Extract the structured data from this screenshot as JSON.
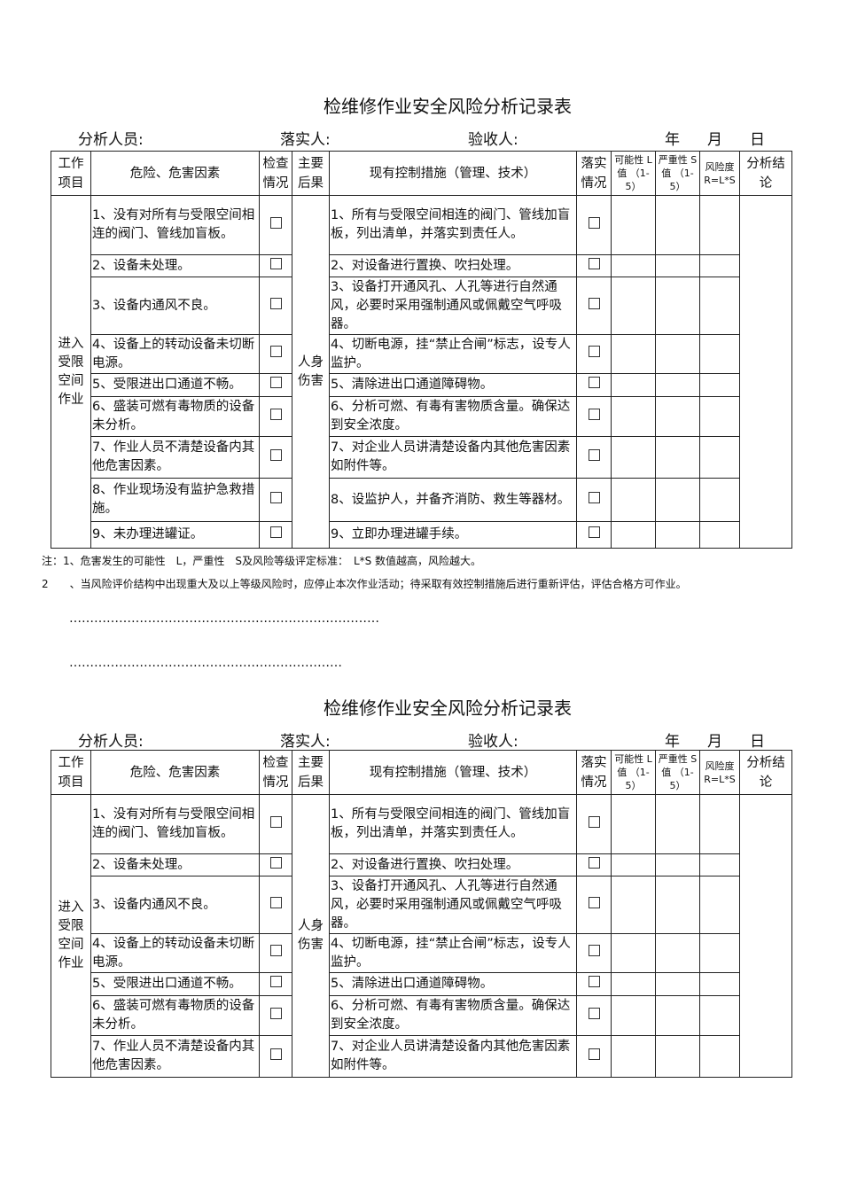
{
  "title": "检维修作业安全风险分析记录表",
  "info": {
    "analyst": "分析人员:",
    "implementer": "落实人:",
    "acceptor": "验收人:",
    "year": "年",
    "month": "月",
    "day": "日"
  },
  "headers": [
    "工作项目",
    "危险、危害因素",
    "检查情况",
    "主要后果",
    "现有控制措施（管理、技术）",
    "落实情况",
    "可能性 L值 （1-5）",
    "严重性 S值 （1-5）",
    "风险度 R=L*S",
    "分析结论"
  ],
  "work_item": "进入受限空间作业",
  "consequence": "人身伤害",
  "rows": [
    {
      "hazard": "1、没有对所有与受限空间相连的阀门、管线加盲板。",
      "measure": "1、所有与受限空间相连的阀门、管线加盲板，列出清单，并落实到责任人。"
    },
    {
      "hazard": "2、设备未处理。",
      "measure": "2、对设备进行置换、吹扫处理。"
    },
    {
      "hazard": "3、设备内通风不良。",
      "measure": "3、设备打开通风孔、人孔等进行自然通风，必要时采用强制通风或佩戴空气呼吸器。"
    },
    {
      "hazard": "4、设备上的转动设备未切断电源。",
      "measure": "4、切断电源，挂“禁止合闸”标志，设专人监护。"
    },
    {
      "hazard": "5、受限进出口通道不畅。",
      "measure": "5、清除进出口通道障碍物。"
    },
    {
      "hazard": "6、盛装可燃有毒物质的设备未分析。",
      "measure": "6、分析可燃、有毒有害物质含量。确保达到安全浓度。"
    },
    {
      "hazard": "7、作业人员不清楚设备内其他危害因素。",
      "measure": "7、对企业人员讲清楚设备内其他危害因素如附件等。"
    },
    {
      "hazard": "8、作业现场没有监护急救措施。",
      "measure": "8、设监护人，并备齐消防、救生等器材。"
    },
    {
      "hazard": "9、未办理进罐证。",
      "measure": "9、立即办理进罐手续。"
    }
  ],
  "notes": [
    "注：1、危害发生的可能性　L，严重性　S及风险等级评定标准：　L*S 数值越高，风险越大。",
    "2　　、当风险评价结构中出现重大及以上等级风险时，应停止本次作业活动；待采取有效控制措施后进行重新评估，评估合格方可作业。"
  ],
  "dots1": "…………………………………………………………………",
  "dots2": "…………………………………………………………"
}
